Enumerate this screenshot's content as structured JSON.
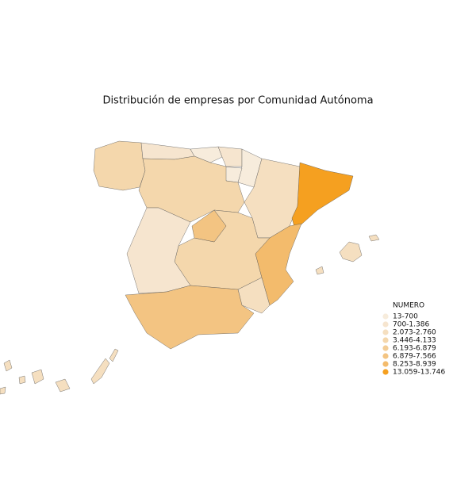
{
  "map": {
    "title": "Distribución de empresas por Comunidad Autónoma",
    "legend": {
      "title": "NUMERO",
      "items": [
        {
          "label": "13-700",
          "color": "#f7ecdc"
        },
        {
          "label": "700-1.386",
          "color": "#f6e5cf"
        },
        {
          "label": "2.073-2.760",
          "color": "#f5dfc0"
        },
        {
          "label": "3.446-4.133",
          "color": "#f4d7ac"
        },
        {
          "label": "6.193-6.879",
          "color": "#f3cd96"
        },
        {
          "label": "6.879-7.566",
          "color": "#f3c482"
        },
        {
          "label": "8.253-8.939",
          "color": "#f3bb6c"
        },
        {
          "label": "13.059-13.746",
          "color": "#f5a020"
        }
      ]
    }
  }
}
